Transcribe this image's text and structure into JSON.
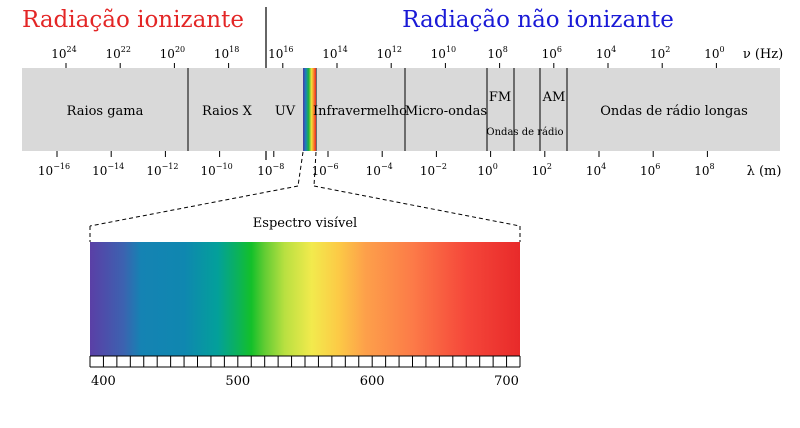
{
  "titles": {
    "ionizing": "Radiação ionizante",
    "non_ionizing": "Radiação não ionizante",
    "ionizing_color": "#e32626",
    "non_ionizing_color": "#1a1ad6"
  },
  "frequency": {
    "unit_label": "ν (Hz)",
    "ticks": [
      {
        "base": "10",
        "exp": "24"
      },
      {
        "base": "10",
        "exp": "22"
      },
      {
        "base": "10",
        "exp": "20"
      },
      {
        "base": "10",
        "exp": "18"
      },
      {
        "base": "10",
        "exp": "16"
      },
      {
        "base": "10",
        "exp": "14"
      },
      {
        "base": "10",
        "exp": "12"
      },
      {
        "base": "10",
        "exp": "10"
      },
      {
        "base": "10",
        "exp": "8"
      },
      {
        "base": "10",
        "exp": "6"
      },
      {
        "base": "10",
        "exp": "4"
      },
      {
        "base": "10",
        "exp": "2"
      },
      {
        "base": "10",
        "exp": "0"
      }
    ]
  },
  "wavelength": {
    "unit_label": "λ (m)",
    "ticks": [
      {
        "base": "10",
        "exp": "−16"
      },
      {
        "base": "10",
        "exp": "−14"
      },
      {
        "base": "10",
        "exp": "−12"
      },
      {
        "base": "10",
        "exp": "−10"
      },
      {
        "base": "10",
        "exp": "−8"
      },
      {
        "base": "10",
        "exp": "−6"
      },
      {
        "base": "10",
        "exp": "−4"
      },
      {
        "base": "10",
        "exp": "−2"
      },
      {
        "base": "10",
        "exp": "0"
      },
      {
        "base": "10",
        "exp": "2"
      },
      {
        "base": "10",
        "exp": "4"
      },
      {
        "base": "10",
        "exp": "6"
      },
      {
        "base": "10",
        "exp": "8"
      }
    ]
  },
  "bands": {
    "gamma": "Raios gama",
    "xray": "Raios X",
    "uv": "UV",
    "infrared": "Infravermelho",
    "microwave": "Micro-ondas",
    "fm": "FM",
    "am": "AM",
    "radio": "Ondas de rádio",
    "long_radio": "Ondas de rádio longas"
  },
  "visible": {
    "title": "Espectro visível",
    "axis_ticks": [
      "400",
      "500",
      "600",
      "700"
    ],
    "range_nm": [
      390,
      710
    ],
    "minor_step_nm": 10,
    "gradient_stops": [
      {
        "nm": 390,
        "color": "#5a3fa6"
      },
      {
        "nm": 415,
        "color": "#3c62b0"
      },
      {
        "nm": 428,
        "color": "#1583b3"
      },
      {
        "nm": 460,
        "color": "#0f87b0"
      },
      {
        "nm": 485,
        "color": "#03a09a"
      },
      {
        "nm": 500,
        "color": "#0bb25a"
      },
      {
        "nm": 510,
        "color": "#13c02a"
      },
      {
        "nm": 520,
        "color": "#62cc33"
      },
      {
        "nm": 535,
        "color": "#b9e041"
      },
      {
        "nm": 555,
        "color": "#f2ea4d"
      },
      {
        "nm": 575,
        "color": "#fcca46"
      },
      {
        "nm": 595,
        "color": "#fda04a"
      },
      {
        "nm": 630,
        "color": "#fc7b48"
      },
      {
        "nm": 670,
        "color": "#f5473a"
      },
      {
        "nm": 710,
        "color": "#e82a2a"
      }
    ]
  },
  "colors": {
    "band_fill": "#d9d9d9",
    "line": "#000000"
  }
}
